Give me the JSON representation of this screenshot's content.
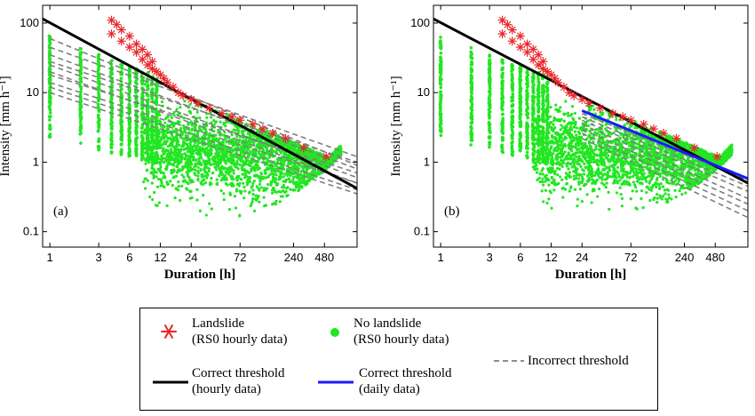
{
  "chart_data": [
    {
      "type": "scatter",
      "panel_label": "(a)",
      "xlabel": "Duration [h]",
      "ylabel": "Intensity [mm h⁻¹]",
      "x_scale": "log",
      "y_scale": "log",
      "xlim": [
        0.85,
        1000
      ],
      "ylim": [
        0.06,
        180
      ],
      "x_ticks": [
        1,
        3,
        6,
        12,
        24,
        72,
        240,
        480
      ],
      "y_ticks": [
        0.1,
        1,
        10,
        100
      ],
      "series": [
        {
          "name": "Landslide (RS0 hourly data)",
          "kind": "points",
          "x": [
            4,
            4,
            4.5,
            5,
            5,
            6,
            6,
            7,
            7,
            8,
            8,
            9,
            9,
            10,
            10,
            11,
            12,
            13,
            14,
            16,
            18,
            20,
            24,
            28,
            36,
            48,
            60,
            72,
            96,
            120,
            150,
            200,
            300,
            500
          ],
          "y": [
            110,
            70,
            95,
            80,
            55,
            65,
            45,
            50,
            38,
            42,
            30,
            35,
            25,
            28,
            22,
            20,
            18,
            16,
            14,
            12,
            10,
            9,
            8,
            7,
            6,
            5,
            4.5,
            4,
            3.5,
            3,
            2.6,
            2.2,
            1.6,
            1.2
          ]
        },
        {
          "name": "No landslide (RS0 hourly data)",
          "kind": "cloud",
          "x_min": 1,
          "x_max": 700,
          "y_min": 0.15,
          "y_max": 65
        },
        {
          "name": "Correct threshold (hourly data)",
          "kind": "line",
          "x": [
            0.85,
            1000
          ],
          "y": [
            115,
            0.42
          ]
        },
        {
          "name": "Incorrect threshold",
          "kind": "dashed-lines",
          "lines": [
            {
              "x": [
                1,
                1000
              ],
              "y": [
                60,
                0.9
              ]
            },
            {
              "x": [
                1,
                1000
              ],
              "y": [
                45,
                1.2
              ]
            },
            {
              "x": [
                1,
                1000
              ],
              "y": [
                35,
                0.8
              ]
            },
            {
              "x": [
                1,
                1000
              ],
              "y": [
                28,
                1.0
              ]
            },
            {
              "x": [
                1,
                1000
              ],
              "y": [
                25,
                0.6
              ]
            },
            {
              "x": [
                1,
                1000
              ],
              "y": [
                20,
                0.5
              ]
            },
            {
              "x": [
                1,
                1000
              ],
              "y": [
                18,
                0.7
              ]
            },
            {
              "x": [
                1,
                1000
              ],
              "y": [
                14,
                0.5
              ]
            },
            {
              "x": [
                1,
                1000
              ],
              "y": [
                12,
                0.4
              ]
            },
            {
              "x": [
                1,
                1000
              ],
              "y": [
                10,
                0.35
              ]
            }
          ]
        }
      ]
    },
    {
      "type": "scatter",
      "panel_label": "(b)",
      "xlabel": "Duration [h]",
      "ylabel": "Intensity [mm h⁻¹]",
      "x_scale": "log",
      "y_scale": "log",
      "xlim": [
        0.85,
        1000
      ],
      "ylim": [
        0.06,
        180
      ],
      "x_ticks": [
        1,
        3,
        6,
        12,
        24,
        72,
        240,
        480
      ],
      "y_ticks": [
        0.1,
        1,
        10,
        100
      ],
      "series": [
        {
          "name": "Landslide (RS0 hourly data)",
          "kind": "points",
          "x": [
            4,
            4,
            4.5,
            5,
            5,
            6,
            6,
            7,
            7,
            8,
            8,
            9,
            9,
            10,
            10,
            11,
            12,
            13,
            14,
            16,
            18,
            20,
            24,
            28,
            36,
            48,
            60,
            72,
            96,
            120,
            150,
            200,
            300,
            500
          ],
          "y": [
            110,
            70,
            95,
            80,
            55,
            65,
            45,
            50,
            38,
            42,
            30,
            35,
            25,
            28,
            22,
            20,
            18,
            16,
            14,
            12,
            10,
            9,
            8,
            7,
            6,
            5,
            4.5,
            4,
            3.5,
            3,
            2.6,
            2.2,
            1.6,
            1.2
          ]
        },
        {
          "name": "No landslide (RS0 hourly data)",
          "kind": "cloud",
          "x_min": 1,
          "x_max": 700,
          "y_min": 0.15,
          "y_max": 65
        },
        {
          "name": "Correct threshold (hourly data)",
          "kind": "line",
          "x": [
            0.85,
            1000
          ],
          "y": [
            115,
            0.5
          ]
        },
        {
          "name": "Correct threshold (daily data)",
          "kind": "line",
          "x": [
            24,
            1000
          ],
          "y": [
            5.5,
            0.58
          ]
        },
        {
          "name": "Incorrect threshold",
          "kind": "dashed-lines",
          "lines": [
            {
              "x": [
                24,
                1000
              ],
              "y": [
                5.0,
                0.55
              ]
            },
            {
              "x": [
                24,
                1000
              ],
              "y": [
                4.5,
                0.45
              ]
            },
            {
              "x": [
                24,
                1000
              ],
              "y": [
                4.0,
                0.38
              ]
            },
            {
              "x": [
                24,
                1000
              ],
              "y": [
                3.5,
                0.3
              ]
            },
            {
              "x": [
                24,
                1000
              ],
              "y": [
                3.0,
                0.25
              ]
            },
            {
              "x": [
                24,
                1000
              ],
              "y": [
                2.6,
                0.2
              ]
            },
            {
              "x": [
                24,
                1000
              ],
              "y": [
                2.2,
                0.16
              ]
            }
          ]
        }
      ]
    }
  ],
  "legend": {
    "landslide": [
      "Landslide",
      "(RS0 hourly data)"
    ],
    "no_landslide": [
      "No landslide",
      "(RS0 hourly data)"
    ],
    "incorrect": "Incorrect threshold",
    "correct_hourly": [
      "Correct threshold",
      "(hourly data)"
    ],
    "correct_daily": [
      "Correct threshold",
      "(daily data)"
    ]
  },
  "colors": {
    "landslide": "#e8262a",
    "no_landslide": "#22e622",
    "correct_hourly": "#000000",
    "correct_daily": "#1a1aff",
    "incorrect": "#7f7f7f"
  }
}
